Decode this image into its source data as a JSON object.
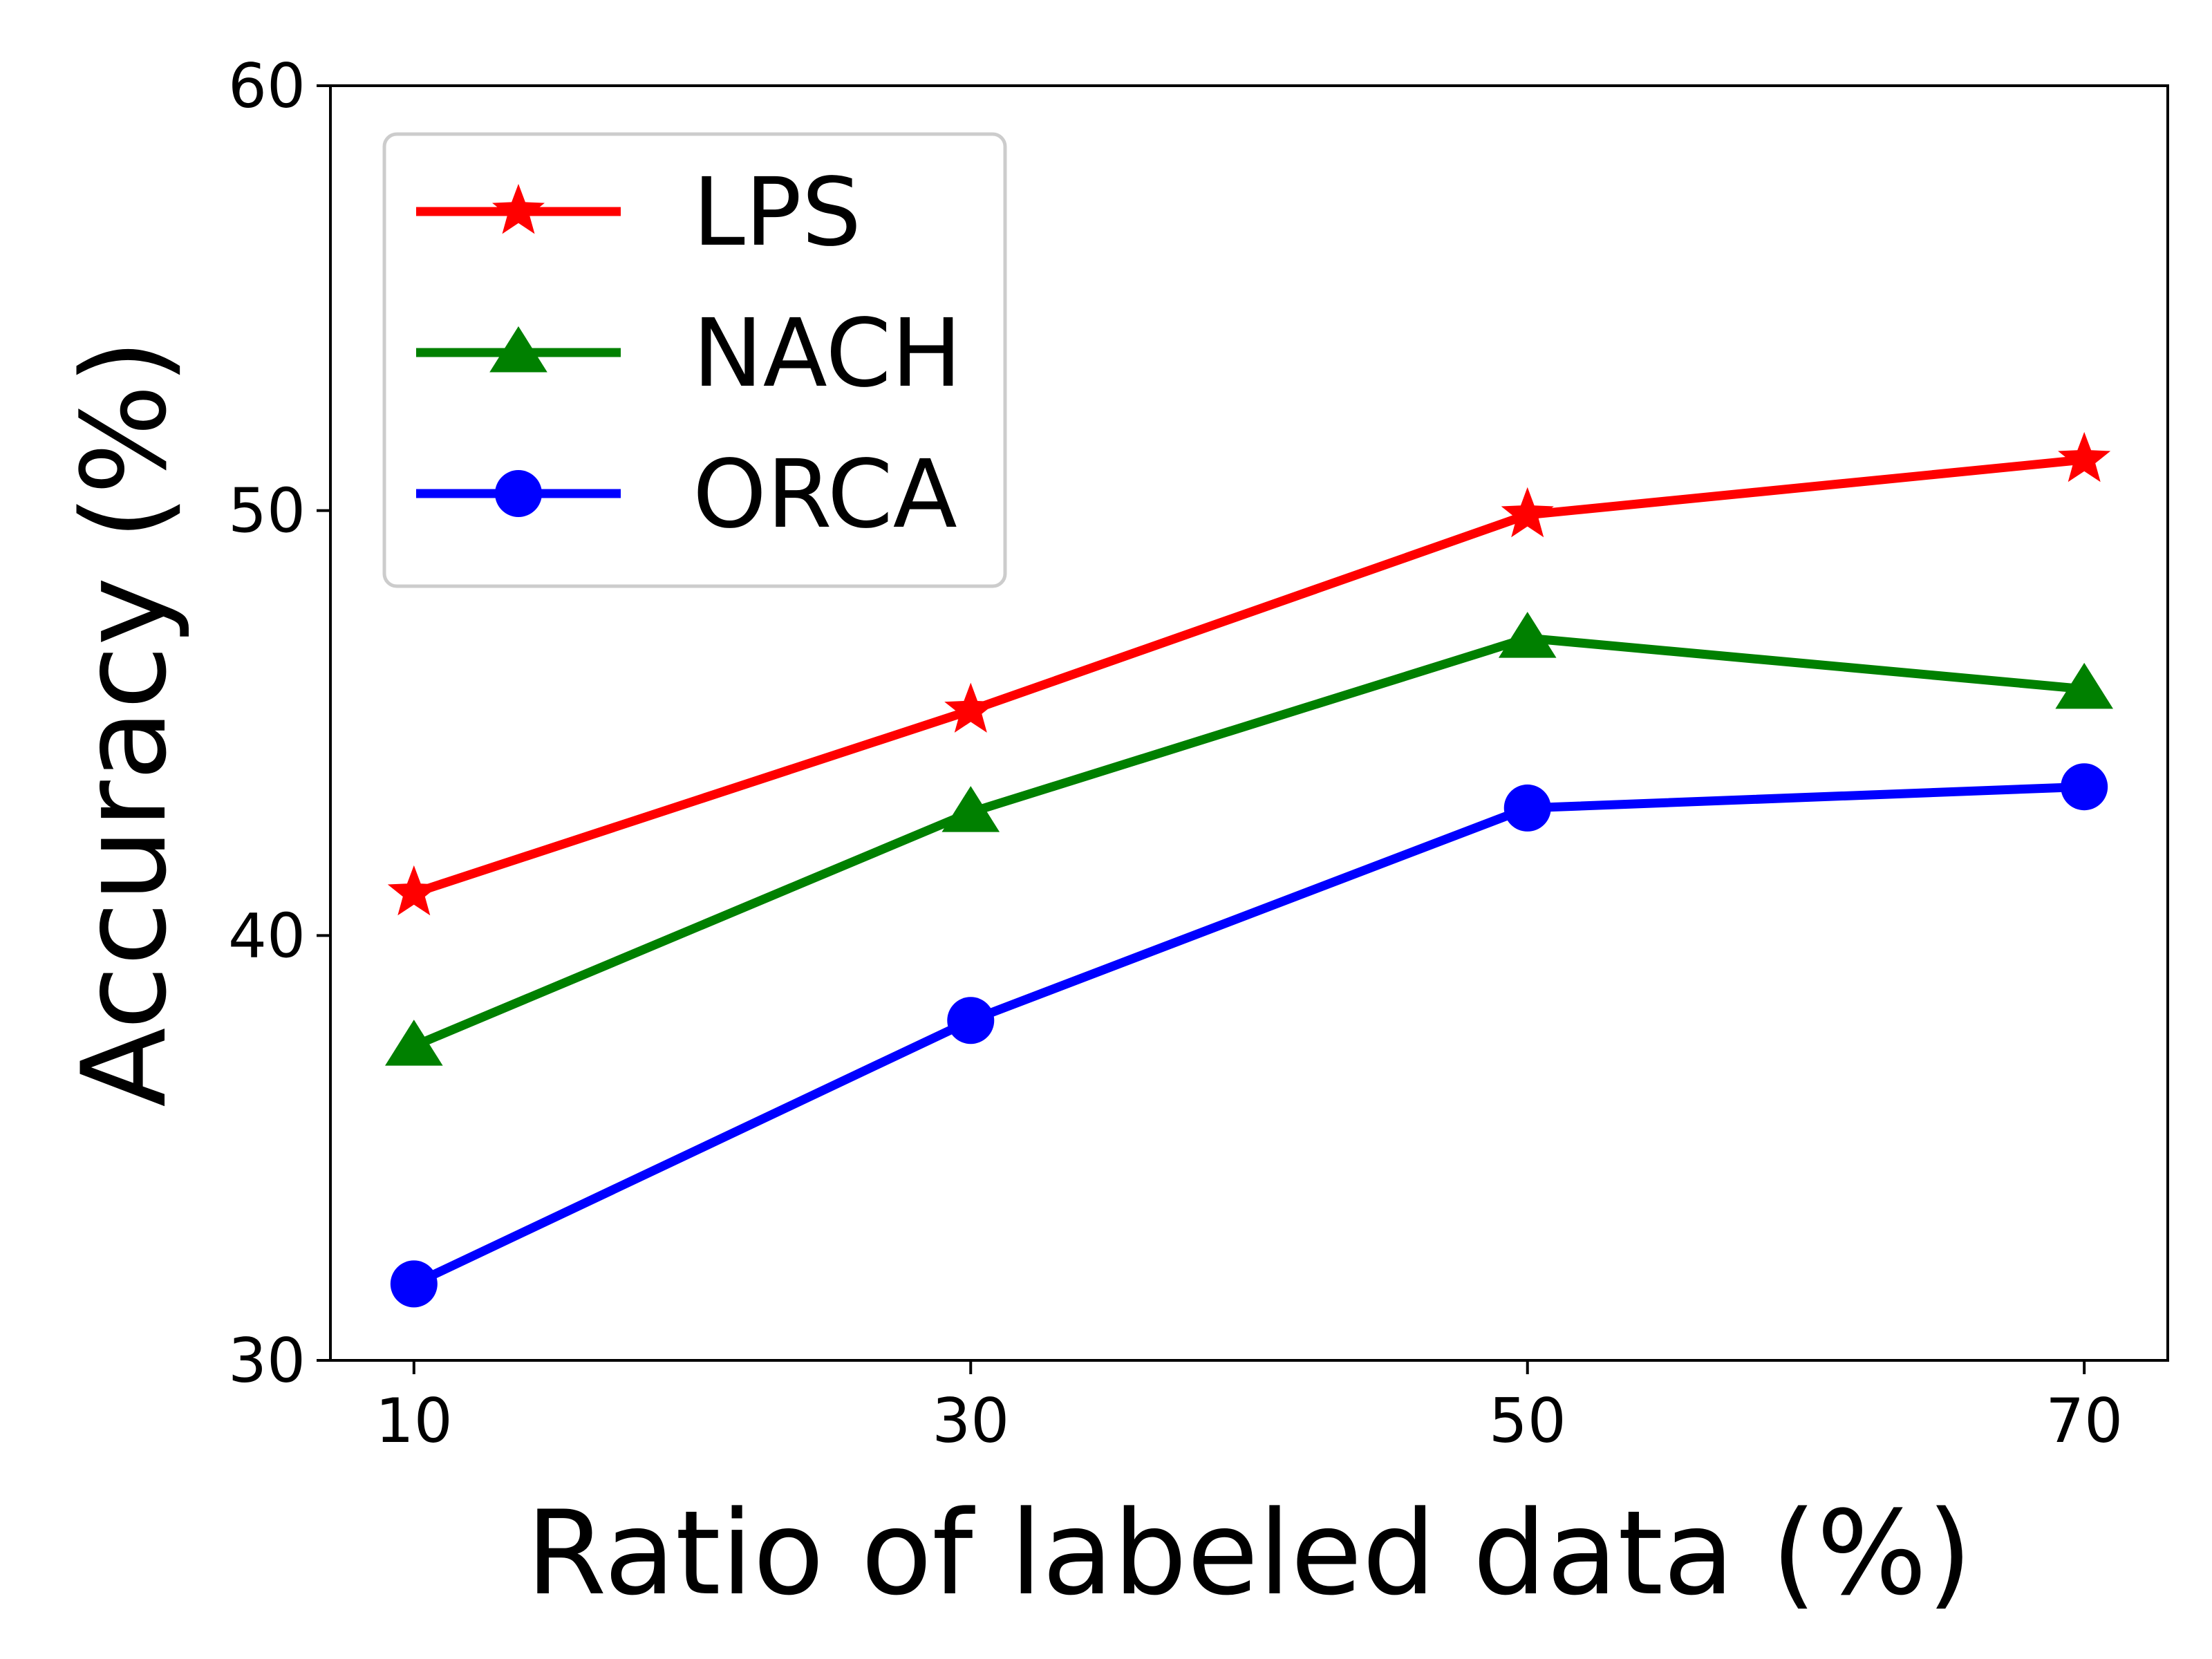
{
  "chart_data": {
    "type": "line",
    "title": "",
    "xlabel": "Ratio of labeled data (%)",
    "ylabel": "Accuracy (%)",
    "x": [
      10,
      30,
      50,
      70
    ],
    "x_tick_labels": [
      "10",
      "30",
      "50",
      "70"
    ],
    "y_tick_values": [
      30,
      40,
      50,
      60
    ],
    "y_tick_labels": [
      "30",
      "40",
      "50",
      "60"
    ],
    "xlim": [
      7,
      73
    ],
    "ylim": [
      30,
      60
    ],
    "grid": false,
    "legend_position": "top-left",
    "series": [
      {
        "name": "LPS",
        "color": "#ff0000",
        "marker": "star",
        "values": [
          41.0,
          45.3,
          49.9,
          51.2
        ]
      },
      {
        "name": "NACH",
        "color": "#008000",
        "marker": "triangle",
        "values": [
          37.4,
          42.9,
          47.0,
          45.8
        ]
      },
      {
        "name": "ORCA",
        "color": "#0000ff",
        "marker": "circle",
        "values": [
          31.8,
          38.0,
          43.0,
          43.5
        ]
      }
    ]
  }
}
